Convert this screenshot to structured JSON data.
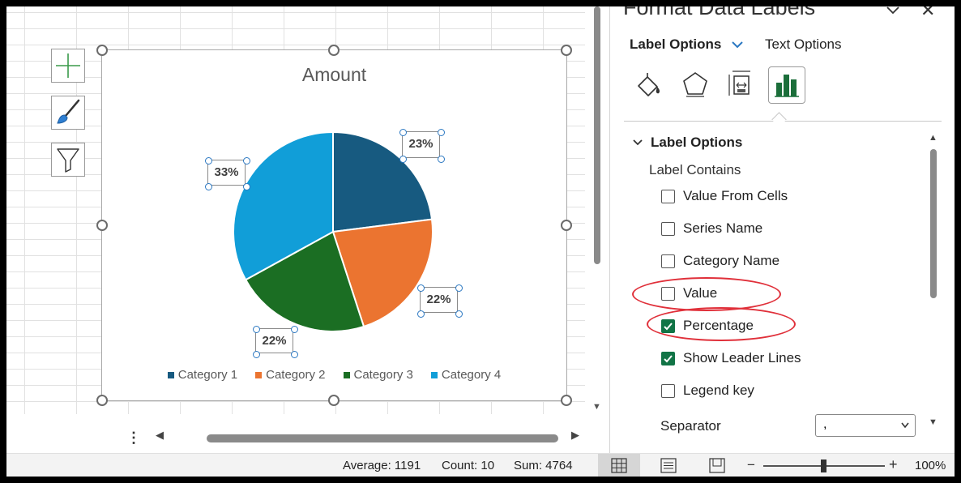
{
  "chart_data": {
    "type": "pie",
    "title": "Amount",
    "categories": [
      "Category 1",
      "Category 2",
      "Category 3",
      "Category 4"
    ],
    "values": [
      23,
      22,
      22,
      33
    ],
    "data_labels": [
      "23%",
      "22%",
      "22%",
      "33%"
    ],
    "legend_position": "bottom",
    "colors": [
      "#175a80",
      "#eb7430",
      "#1b6e23",
      "#119ed8"
    ]
  },
  "pane": {
    "title": "Format Data Labels",
    "tabs": {
      "label_options": "Label Options",
      "text_options": "Text Options"
    },
    "icons": [
      "fill-line-icon",
      "effects-icon",
      "size-properties-icon",
      "label-options-icon"
    ],
    "section_title": "Label Options",
    "label_contains": "Label Contains",
    "options": [
      {
        "label": "Value From Cells",
        "checked": false
      },
      {
        "label": "Series Name",
        "checked": false
      },
      {
        "label": "Category Name",
        "checked": false
      },
      {
        "label": "Value",
        "checked": false
      },
      {
        "label": "Percentage",
        "checked": true
      },
      {
        "label": "Show Leader Lines",
        "checked": true
      },
      {
        "label": "Legend key",
        "checked": false
      }
    ],
    "separator_label": "Separator",
    "separator_value": ","
  },
  "status": {
    "average": "Average: 1191",
    "count": "Count: 10",
    "sum": "Sum: 4764",
    "zoom": "100%"
  },
  "highlight_color": "#e0303a"
}
